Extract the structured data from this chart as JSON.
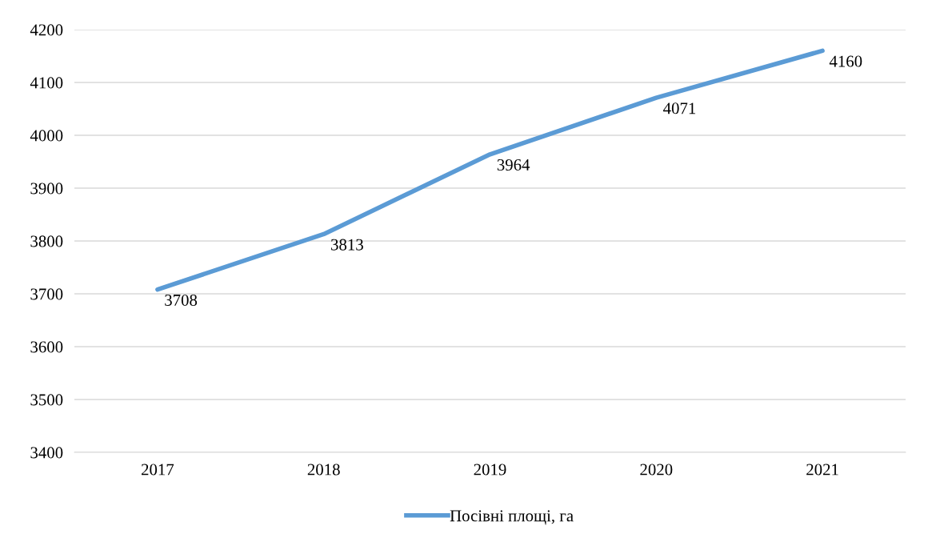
{
  "chart_data": {
    "type": "line",
    "categories": [
      "2017",
      "2018",
      "2019",
      "2020",
      "2021"
    ],
    "series": [
      {
        "name": "Посівні площі, га",
        "color": "#5b9bd5",
        "values": [
          3708,
          3813,
          3964,
          4071,
          4160
        ]
      }
    ],
    "ylim": [
      3400,
      4200
    ],
    "yticks": [
      3400,
      3500,
      3600,
      3700,
      3800,
      3900,
      4000,
      4100,
      4200
    ],
    "grid": "y",
    "legend": "bottom",
    "data_labels": true,
    "marker": "none",
    "line_style": "solid"
  }
}
